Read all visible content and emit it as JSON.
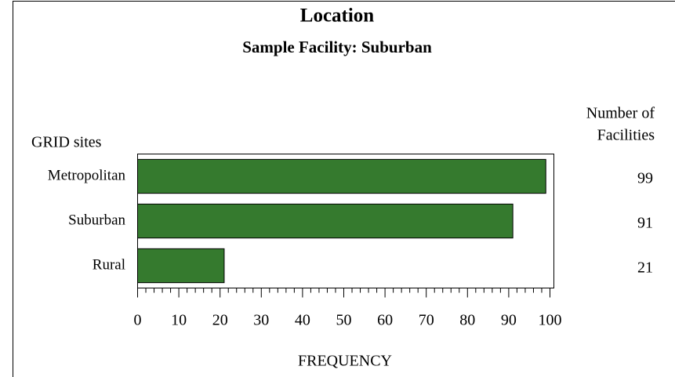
{
  "chart_data": {
    "type": "bar",
    "orientation": "horizontal",
    "title": "Location",
    "subtitle": "Sample Facility: Suburban",
    "y_label": "GRID sites",
    "x_label": "FREQUENCY",
    "value_column_header": [
      "Number of",
      "Facilities"
    ],
    "categories": [
      "Metropolitan",
      "Suburban",
      "Rural"
    ],
    "values": [
      99,
      91,
      21
    ],
    "color": "#357a2e",
    "xlim": [
      0,
      100
    ],
    "xticks": [
      0,
      10,
      20,
      30,
      40,
      50,
      60,
      70,
      80,
      90,
      100
    ],
    "xminorticks": [
      2,
      4,
      6,
      8,
      12,
      14,
      16,
      18,
      22,
      24,
      26,
      28,
      32,
      34,
      36,
      38,
      42,
      44,
      46,
      48,
      52,
      54,
      56,
      58,
      62,
      64,
      66,
      68,
      72,
      74,
      76,
      78,
      82,
      84,
      86,
      88,
      92,
      94,
      96,
      98
    ]
  }
}
